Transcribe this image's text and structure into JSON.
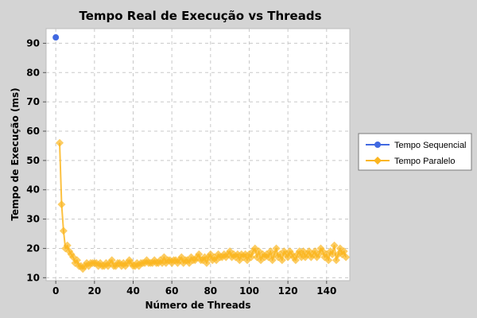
{
  "chart_data": {
    "type": "line",
    "title": "Tempo Real de Execução vs Threads",
    "xlabel": "Número de Threads",
    "ylabel": "Tempo de Execução (ms)",
    "xlim": [
      -5,
      152
    ],
    "ylim": [
      9,
      95
    ],
    "xticks": [
      0,
      20,
      40,
      60,
      80,
      100,
      120,
      140
    ],
    "yticks": [
      10,
      20,
      30,
      40,
      50,
      60,
      70,
      80,
      90
    ],
    "grid": true,
    "legend_position": "right",
    "series": [
      {
        "name": "Tempo Sequencial",
        "color": "#4169e1",
        "marker": "circle",
        "points": [
          [
            0,
            92
          ]
        ]
      },
      {
        "name": "Tempo Paralelo",
        "color": "#fbb621",
        "marker": "diamond",
        "points": [
          [
            2,
            56
          ],
          [
            3,
            35
          ],
          [
            4,
            26
          ],
          [
            5,
            20
          ],
          [
            6,
            21
          ],
          [
            7,
            19
          ],
          [
            8,
            18
          ],
          [
            9,
            17
          ],
          [
            10,
            15
          ],
          [
            11,
            16
          ],
          [
            12,
            14
          ],
          [
            13,
            14
          ],
          [
            14,
            13
          ],
          [
            15,
            14
          ],
          [
            16,
            15
          ],
          [
            17,
            14
          ],
          [
            18,
            15
          ],
          [
            19,
            15
          ],
          [
            20,
            15
          ],
          [
            21,
            15
          ],
          [
            22,
            14
          ],
          [
            23,
            15
          ],
          [
            24,
            14
          ],
          [
            25,
            14
          ],
          [
            26,
            15
          ],
          [
            27,
            14
          ],
          [
            28,
            15
          ],
          [
            29,
            16
          ],
          [
            30,
            14
          ],
          [
            31,
            14
          ],
          [
            32,
            15
          ],
          [
            33,
            15
          ],
          [
            34,
            14
          ],
          [
            35,
            15
          ],
          [
            36,
            14
          ],
          [
            37,
            15
          ],
          [
            38,
            16
          ],
          [
            39,
            15
          ],
          [
            40,
            14
          ],
          [
            41,
            14
          ],
          [
            42,
            15
          ],
          [
            43,
            14
          ],
          [
            44,
            15
          ],
          [
            45,
            15
          ],
          [
            46,
            15
          ],
          [
            47,
            16
          ],
          [
            48,
            15
          ],
          [
            49,
            15
          ],
          [
            50,
            15
          ],
          [
            51,
            16
          ],
          [
            52,
            15
          ],
          [
            53,
            15
          ],
          [
            54,
            16
          ],
          [
            55,
            15
          ],
          [
            56,
            17
          ],
          [
            57,
            15
          ],
          [
            58,
            16
          ],
          [
            59,
            16
          ],
          [
            60,
            15
          ],
          [
            61,
            16
          ],
          [
            62,
            16
          ],
          [
            63,
            15
          ],
          [
            64,
            16
          ],
          [
            65,
            17
          ],
          [
            66,
            15
          ],
          [
            67,
            16
          ],
          [
            68,
            16
          ],
          [
            69,
            15
          ],
          [
            70,
            17
          ],
          [
            71,
            16
          ],
          [
            72,
            16
          ],
          [
            73,
            17
          ],
          [
            74,
            18
          ],
          [
            75,
            16
          ],
          [
            76,
            16
          ],
          [
            77,
            17
          ],
          [
            78,
            15
          ],
          [
            79,
            17
          ],
          [
            80,
            18
          ],
          [
            81,
            16
          ],
          [
            82,
            17
          ],
          [
            83,
            16
          ],
          [
            84,
            18
          ],
          [
            85,
            17
          ],
          [
            86,
            17
          ],
          [
            87,
            18
          ],
          [
            88,
            17
          ],
          [
            89,
            18
          ],
          [
            90,
            19
          ],
          [
            91,
            17
          ],
          [
            92,
            18
          ],
          [
            93,
            17
          ],
          [
            94,
            18
          ],
          [
            95,
            16
          ],
          [
            96,
            18
          ],
          [
            97,
            17
          ],
          [
            98,
            18
          ],
          [
            99,
            16
          ],
          [
            100,
            18
          ],
          [
            101,
            17
          ],
          [
            102,
            19
          ],
          [
            103,
            20
          ],
          [
            104,
            17
          ],
          [
            105,
            19
          ],
          [
            106,
            16
          ],
          [
            107,
            18
          ],
          [
            108,
            17
          ],
          [
            109,
            18
          ],
          [
            110,
            17
          ],
          [
            111,
            19
          ],
          [
            112,
            16
          ],
          [
            113,
            18
          ],
          [
            114,
            20
          ],
          [
            115,
            17
          ],
          [
            116,
            18
          ],
          [
            117,
            16
          ],
          [
            118,
            19
          ],
          [
            119,
            18
          ],
          [
            120,
            17
          ],
          [
            121,
            19
          ],
          [
            122,
            18
          ],
          [
            123,
            17
          ],
          [
            124,
            16
          ],
          [
            125,
            18
          ],
          [
            126,
            19
          ],
          [
            127,
            17
          ],
          [
            128,
            19
          ],
          [
            129,
            17
          ],
          [
            130,
            18
          ],
          [
            131,
            19
          ],
          [
            132,
            17
          ],
          [
            133,
            18
          ],
          [
            134,
            19
          ],
          [
            135,
            17
          ],
          [
            136,
            18
          ],
          [
            137,
            20
          ],
          [
            138,
            19
          ],
          [
            139,
            17
          ],
          [
            140,
            18
          ],
          [
            141,
            16
          ],
          [
            142,
            19
          ],
          [
            143,
            18
          ],
          [
            144,
            21
          ],
          [
            145,
            16
          ],
          [
            146,
            18
          ],
          [
            147,
            20
          ],
          [
            148,
            18
          ],
          [
            149,
            19
          ],
          [
            150,
            17
          ]
        ]
      }
    ]
  }
}
